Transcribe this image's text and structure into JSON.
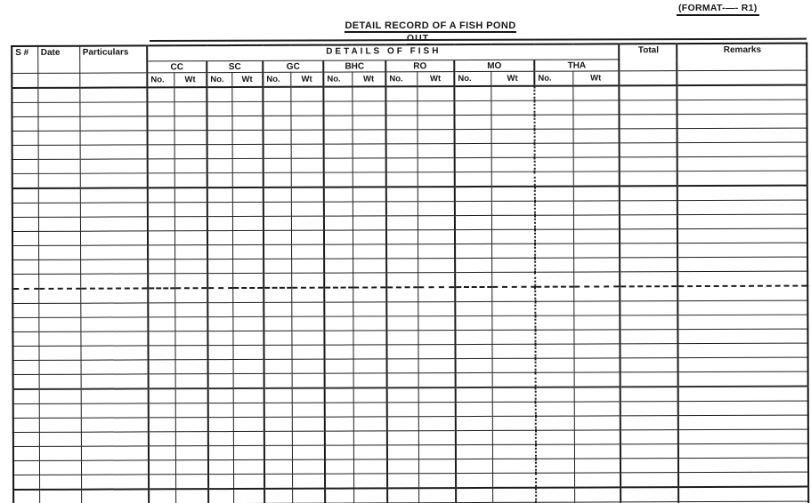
{
  "page": {
    "format_label": "(FORMAT-—- R1)",
    "title": "DETAIL RECORD OF A FISH POND",
    "subtitle": "OUT",
    "background_color": "#ffffff",
    "ink_color": "#161616"
  },
  "table": {
    "columns": {
      "serial": "S #",
      "date": "Date",
      "particulars": "Particulars",
      "details_header": "DETAILS  OF  FISH",
      "total": "Total",
      "remarks": "Remarks"
    },
    "species": [
      "CC",
      "SC",
      "GC",
      "BHC",
      "RO",
      "MO",
      "THA"
    ],
    "sub_columns": [
      "No.",
      "Wt"
    ],
    "body_rows": 30,
    "body_cells": "empty"
  }
}
